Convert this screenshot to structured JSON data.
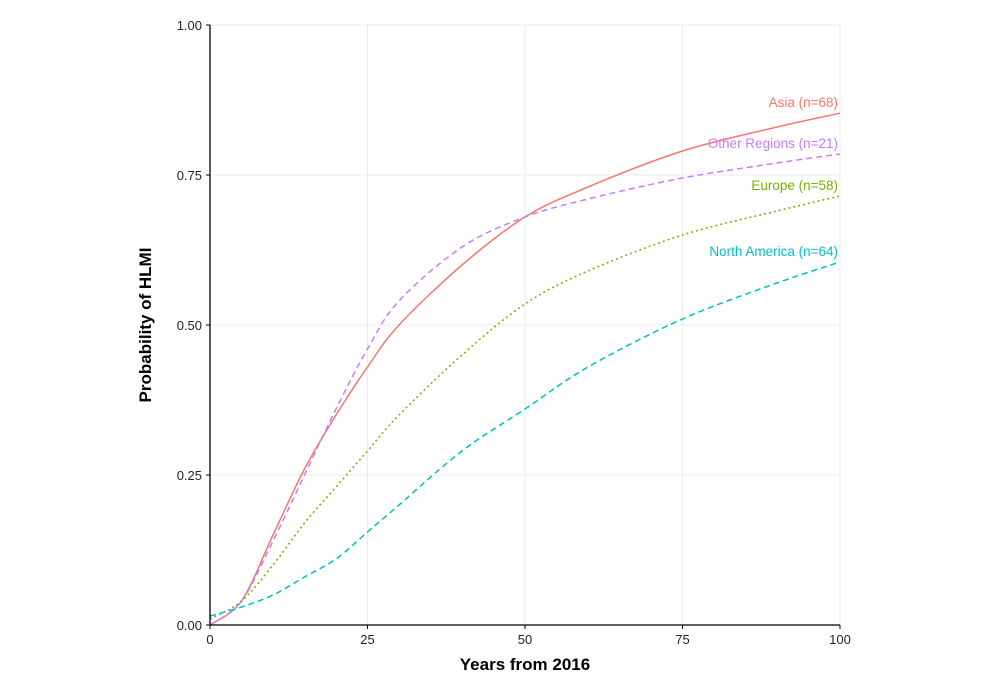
{
  "chart_data": {
    "type": "line",
    "title": "",
    "xlabel": "Years from 2016",
    "ylabel": "Probability of HLMI",
    "xlim": [
      0,
      100
    ],
    "ylim": [
      0,
      1
    ],
    "grid": true,
    "xticks": [
      0,
      25,
      50,
      75,
      100
    ],
    "xtick_labels": [
      "0",
      "25",
      "50",
      "75",
      "100"
    ],
    "yticks": [
      0,
      0.25,
      0.5,
      0.75,
      1
    ],
    "ytick_labels": [
      "0.00",
      "0.25",
      "0.50",
      "0.75",
      "1.00"
    ],
    "x": [
      0,
      5,
      10,
      15,
      20,
      25,
      30,
      40,
      50,
      60,
      75,
      90,
      100
    ],
    "series": [
      {
        "name": "Asia (n=68)",
        "color": "#F8766D",
        "dash": "solid",
        "values": [
          0,
          0.04,
          0.15,
          0.26,
          0.35,
          0.43,
          0.5,
          0.6,
          0.68,
          0.73,
          0.79,
          0.83,
          0.853
        ]
      },
      {
        "name": "Other Regions (n=21)",
        "color": "#C77CFF",
        "dash": "dashed",
        "values": [
          0,
          0.04,
          0.14,
          0.25,
          0.36,
          0.46,
          0.54,
          0.63,
          0.68,
          0.71,
          0.745,
          0.77,
          0.785
        ]
      },
      {
        "name": "Europe (n=58)",
        "color": "#7CAE00",
        "dash": "dotted",
        "values": [
          0.01,
          0.04,
          0.1,
          0.17,
          0.23,
          0.29,
          0.35,
          0.45,
          0.535,
          0.59,
          0.65,
          0.69,
          0.715
        ]
      },
      {
        "name": "North America (n=64)",
        "color": "#00BFC4",
        "dash": "dashed",
        "values": [
          0.015,
          0.03,
          0.05,
          0.08,
          0.11,
          0.155,
          0.2,
          0.29,
          0.36,
          0.43,
          0.51,
          0.57,
          0.605
        ]
      }
    ],
    "legend": "direct labels at right end of lines"
  }
}
